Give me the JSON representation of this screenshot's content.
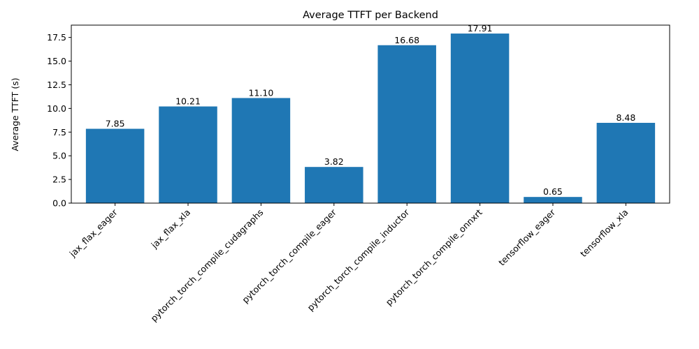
{
  "chart_data": {
    "type": "bar",
    "title": "Average TTFT per Backend",
    "xlabel": "",
    "ylabel": "Average TTFT (s)",
    "categories": [
      "jax_flax_eager",
      "jax_flax_xla",
      "pytorch_torch_compile_cudagraphs",
      "pytorch_torch_compile_eager",
      "pytorch_torch_compile_inductor",
      "pytorch_torch_compile_onnxrt",
      "tensorflow_eager",
      "tensorflow_xla"
    ],
    "values": [
      7.85,
      10.21,
      11.1,
      3.82,
      16.68,
      17.91,
      0.65,
      8.48
    ],
    "data_labels": [
      "7.85",
      "10.21",
      "11.10",
      "3.82",
      "16.68",
      "17.91",
      "0.65",
      "8.48"
    ],
    "yticks": [
      0.0,
      2.5,
      5.0,
      7.5,
      10.0,
      12.5,
      15.0,
      17.5
    ],
    "ytick_labels": [
      "0.0",
      "2.5",
      "5.0",
      "7.5",
      "10.0",
      "12.5",
      "15.0",
      "17.5"
    ],
    "ylim": [
      0,
      18.8
    ],
    "grid": false,
    "legend": "none",
    "bar_color": "#1f77b4",
    "xtick_rotation_deg": 45
  }
}
